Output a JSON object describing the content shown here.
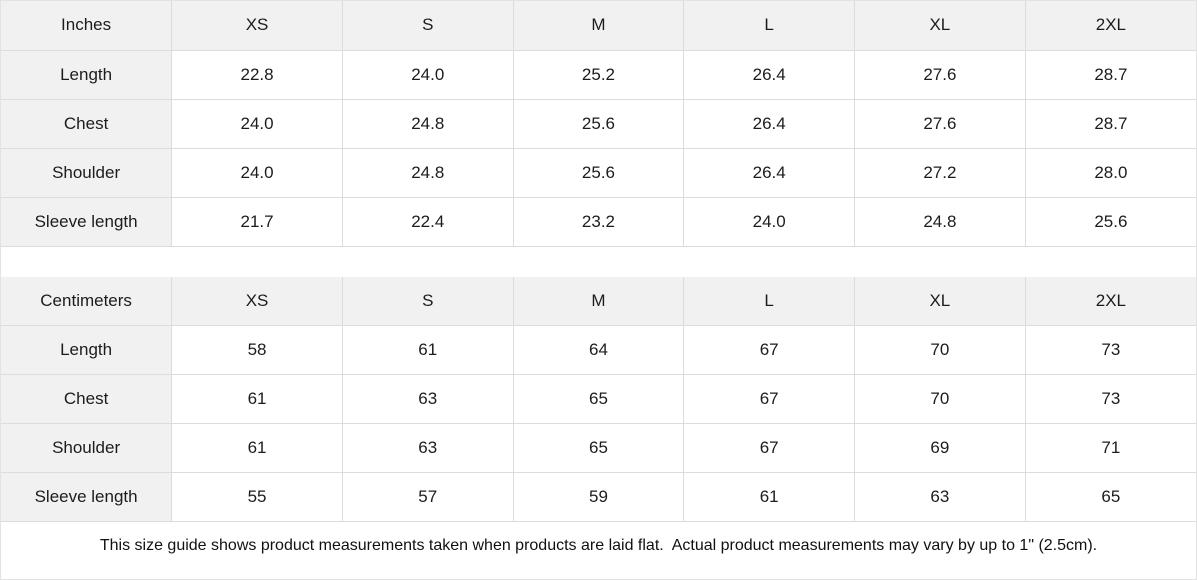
{
  "colors": {
    "header_bg": "#f1f1f1",
    "cell_bg": "#ffffff",
    "border": "#dcdcdc",
    "text": "#1c1c1c"
  },
  "tables": [
    {
      "unit": "Inches",
      "sizes": [
        "XS",
        "S",
        "M",
        "L",
        "XL",
        "2XL"
      ],
      "rows": [
        {
          "label": "Length",
          "values": [
            "22.8",
            "24.0",
            "25.2",
            "26.4",
            "27.6",
            "28.7"
          ]
        },
        {
          "label": "Chest",
          "values": [
            "24.0",
            "24.8",
            "25.6",
            "26.4",
            "27.6",
            "28.7"
          ]
        },
        {
          "label": "Shoulder",
          "values": [
            "24.0",
            "24.8",
            "25.6",
            "26.4",
            "27.2",
            "28.0"
          ]
        },
        {
          "label": "Sleeve length",
          "values": [
            "21.7",
            "22.4",
            "23.2",
            "24.0",
            "24.8",
            "25.6"
          ]
        }
      ]
    },
    {
      "unit": "Centimeters",
      "sizes": [
        "XS",
        "S",
        "M",
        "L",
        "XL",
        "2XL"
      ],
      "rows": [
        {
          "label": "Length",
          "values": [
            "58",
            "61",
            "64",
            "67",
            "70",
            "73"
          ]
        },
        {
          "label": "Chest",
          "values": [
            "61",
            "63",
            "65",
            "67",
            "70",
            "73"
          ]
        },
        {
          "label": "Shoulder",
          "values": [
            "61",
            "63",
            "65",
            "67",
            "69",
            "71"
          ]
        },
        {
          "label": "Sleeve length",
          "values": [
            "55",
            "57",
            "59",
            "61",
            "63",
            "65"
          ]
        }
      ]
    }
  ],
  "footer": {
    "note": "This size guide shows product measurements taken when products are laid flat.  Actual product measurements may vary by up to 1\" (2.5cm)."
  }
}
